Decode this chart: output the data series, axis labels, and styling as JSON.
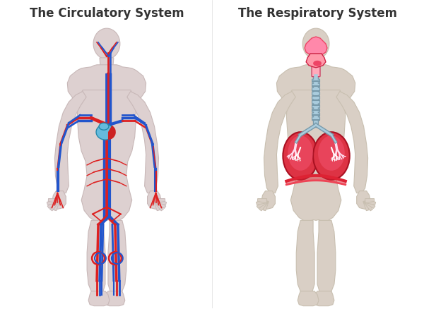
{
  "title_left": "The Circulatory System",
  "title_right": "The Respiratory System",
  "bg_color": "#ffffff",
  "body_color_left": "#ddd0d0",
  "body_color_right": "#d9cfc5",
  "body_outline_left": "#c8b8b8",
  "body_outline_right": "#c8bfb0",
  "artery_color": "#dd2020",
  "vein_color": "#2255cc",
  "heart_fill": "#55aacc",
  "heart_red": "#cc2222",
  "lung_color": "#dd3344",
  "lung_inner": "#ff8899",
  "trachea_color": "#7799aa",
  "trachea_light": "#aaccdd",
  "diaphragm_color": "#dd2233",
  "nose_color": "#ff88aa",
  "title_fontsize": 12,
  "title_color": "#333333"
}
